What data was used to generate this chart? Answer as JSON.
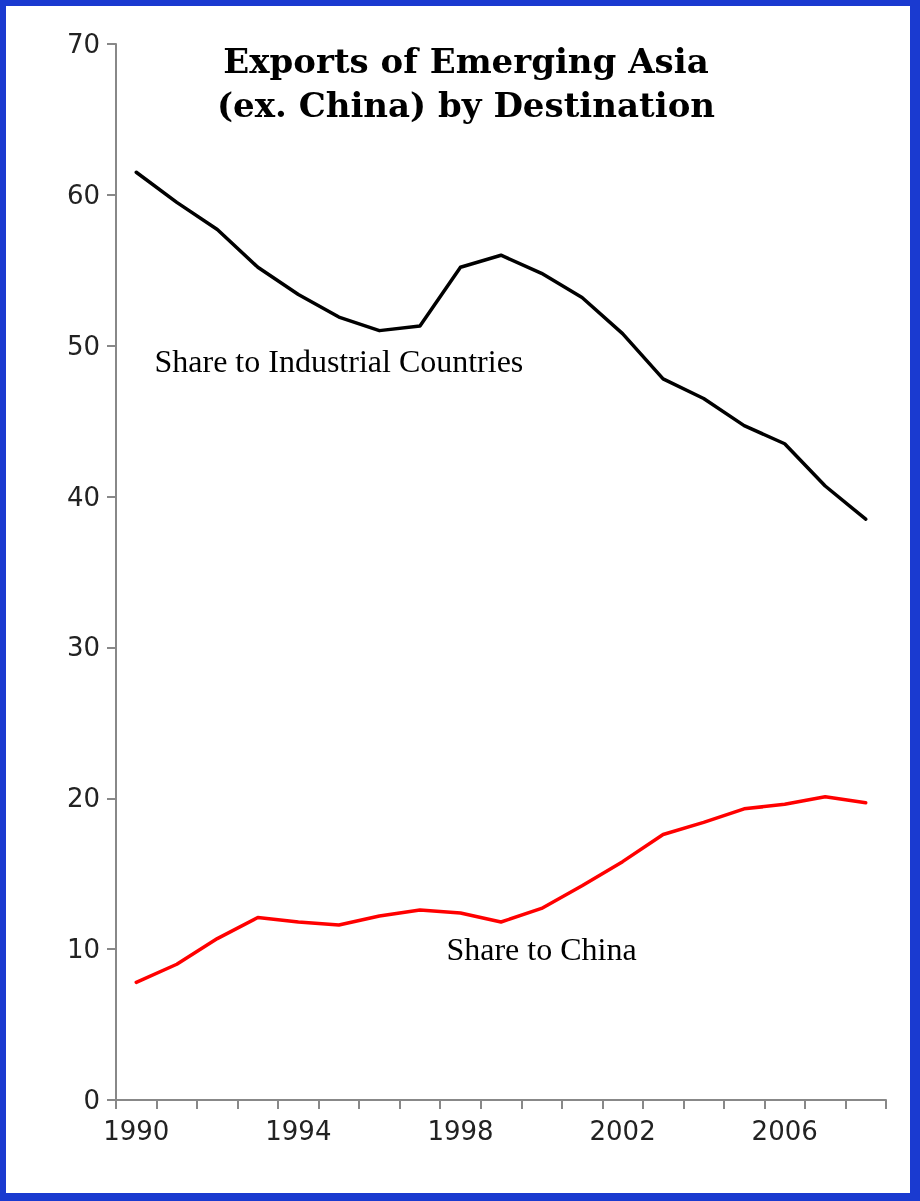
{
  "chart_data": {
    "type": "line",
    "title": "Exports of Emerging Asia\n(ex. China) by Destination",
    "categories": [
      "1990",
      null,
      null,
      null,
      "1994",
      null,
      null,
      null,
      "1998",
      null,
      null,
      null,
      "2002",
      null,
      null,
      null,
      "2006",
      null,
      null
    ],
    "series": [
      {
        "name": "Share to Industrial Countries",
        "color": "#000000",
        "values": [
          61.5,
          59.5,
          57.7,
          55.2,
          53.4,
          51.9,
          51.0,
          51.3,
          55.2,
          56.0,
          54.8,
          53.2,
          50.8,
          47.8,
          46.5,
          44.7,
          43.5,
          40.7,
          38.5
        ]
      },
      {
        "name": "Share to China",
        "color": "#ff0000",
        "values": [
          7.8,
          9.0,
          10.7,
          12.1,
          11.8,
          11.6,
          12.2,
          12.6,
          12.4,
          11.8,
          12.7,
          14.2,
          15.8,
          17.6,
          18.4,
          19.3,
          19.6,
          20.1,
          19.7
        ]
      }
    ],
    "ylim": [
      0,
      70
    ],
    "yticks": [
      0,
      10,
      20,
      30,
      40,
      50,
      60,
      70
    ],
    "grid": false,
    "legend": false,
    "marker": "none",
    "line_style": "solid"
  }
}
